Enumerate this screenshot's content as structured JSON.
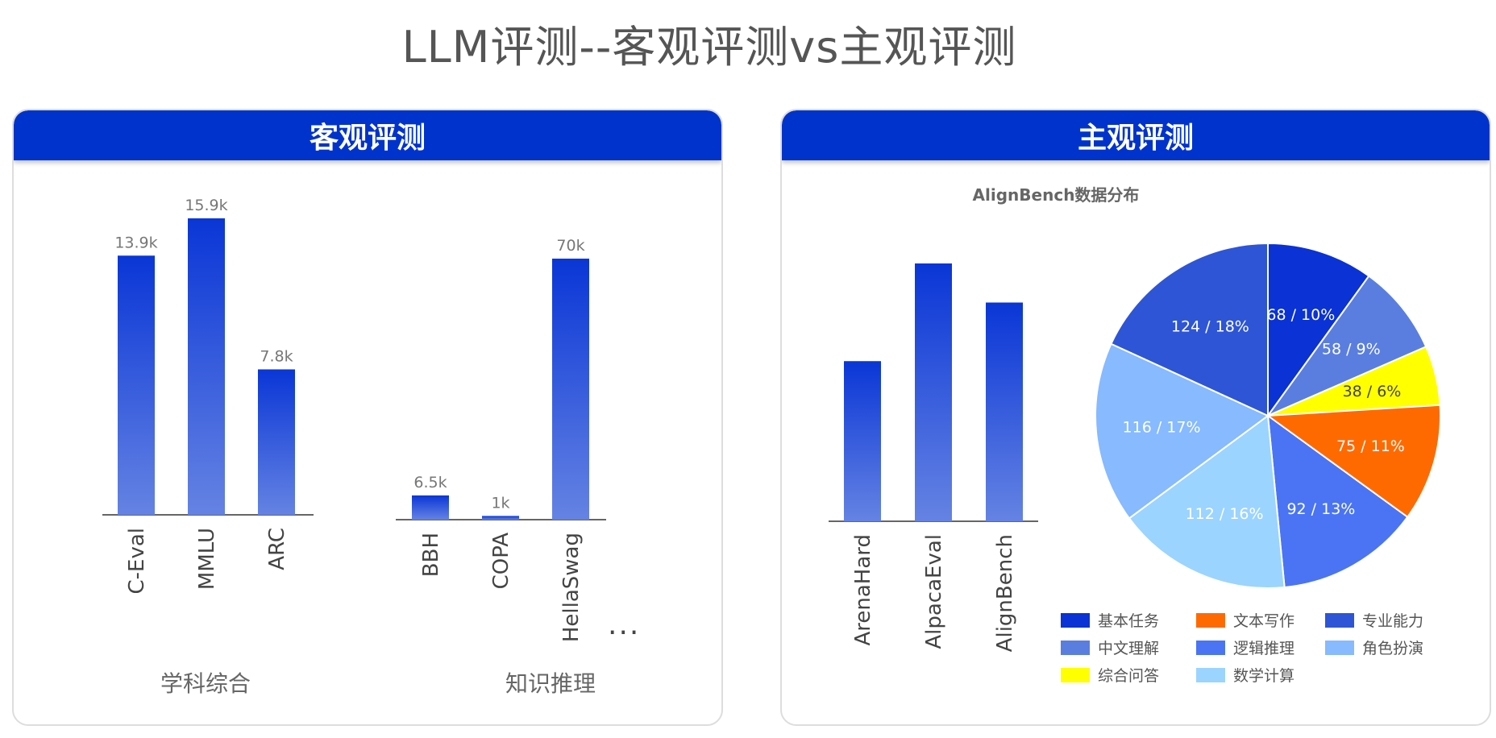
{
  "page_title": "LLM评测--客观评测vs主观评测",
  "left_panel": {
    "header": "客观评测",
    "groups": [
      {
        "label": "学科综合"
      },
      {
        "label": "知识推理"
      }
    ],
    "more": "..."
  },
  "right_panel": {
    "header": "主观评测"
  },
  "colors": {
    "header_bg": "#0033cc",
    "bar_top": "#0a36d6",
    "bar_bottom": "#6583e3"
  },
  "chart_data": [
    {
      "type": "bar",
      "categories": [
        "C-Eval",
        "MMLU",
        "ARC"
      ],
      "values": [
        13.9,
        15.9,
        7.8
      ],
      "data_labels": [
        "13.9k",
        "15.9k",
        "7.8k"
      ],
      "group": "学科综合",
      "ylim": [
        0,
        15.9
      ]
    },
    {
      "type": "bar",
      "categories": [
        "BBH",
        "COPA",
        "HellaSwag"
      ],
      "values": [
        6.5,
        1,
        70
      ],
      "data_labels": [
        "6.5k",
        "1k",
        "70k"
      ],
      "group": "知识推理",
      "ylim": [
        0,
        70
      ]
    },
    {
      "type": "bar",
      "categories": [
        "ArenaHard",
        "AlpacaEval",
        "AlignBench"
      ],
      "values": [
        500,
        805,
        683
      ],
      "ylim": [
        0,
        805
      ]
    },
    {
      "type": "pie",
      "title": "AlignBench数据分布",
      "slices": [
        {
          "name": "基本任务",
          "value": 68,
          "percent": 10,
          "label": "68 / 10%",
          "color": "#0a32d4"
        },
        {
          "name": "中文理解",
          "value": 58,
          "percent": 9,
          "label": "58 / 9%",
          "color": "#5a7ee0"
        },
        {
          "name": "综合问答",
          "value": 38,
          "percent": 6,
          "label": "38 / 6%",
          "color": "#ffff00"
        },
        {
          "name": "文本写作",
          "value": 75,
          "percent": 11,
          "label": "75 / 11%",
          "color": "#ff6a00"
        },
        {
          "name": "逻辑推理",
          "value": 92,
          "percent": 13,
          "label": "92 / 13%",
          "color": "#4a74f4"
        },
        {
          "name": "数学计算",
          "value": 112,
          "percent": 16,
          "label": "112 / 16%",
          "color": "#9bd4ff"
        },
        {
          "name": "角色扮演",
          "value": 116,
          "percent": 17,
          "label": "116 / 17%",
          "color": "#87baff"
        },
        {
          "name": "专业能力",
          "value": 124,
          "percent": 18,
          "label": "124 / 18%",
          "color": "#2d55d6"
        }
      ],
      "legend": {
        "placement": "bottom",
        "order": [
          "基本任务",
          "文本写作",
          "专业能力",
          "中文理解",
          "逻辑推理",
          "角色扮演",
          "综合问答",
          "数学计算"
        ]
      }
    }
  ]
}
